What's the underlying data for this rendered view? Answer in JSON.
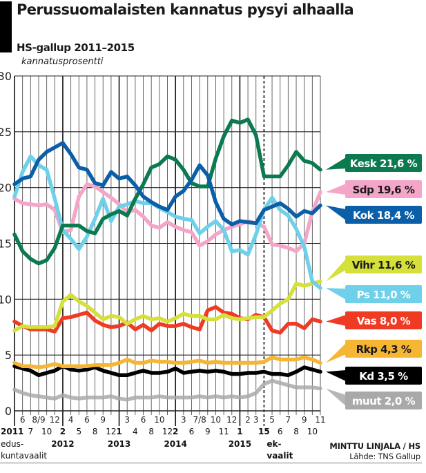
{
  "header": {
    "title": "Perussuomalaisten kannatus pysyi alhaalla",
    "subtitle": "HS-gallup 2011–2015",
    "unit_label": "kannatusprosentti"
  },
  "credits": {
    "author": "MINTTU LINJALA / HS",
    "source": "Lähde: TNS Gallup"
  },
  "chart_data": {
    "type": "line",
    "title": "Perussuomalaisten kannatus pysyi alhaalla",
    "subtitle": "HS-gallup 2011–2015",
    "ylabel": "kannatusprosentti",
    "xlabel": "",
    "ylim": [
      0,
      30
    ],
    "yticks": [
      "0",
      "5",
      "10",
      "15",
      "20",
      "25",
      "30"
    ],
    "grid": true,
    "legend_placement": "right",
    "x_count": 39,
    "x_ticks_upper": [
      {
        "i": 1,
        "label": "6"
      },
      {
        "i": 3,
        "label": "8/9"
      },
      {
        "i": 5,
        "label": "12"
      },
      {
        "i": 7,
        "label": "4"
      },
      {
        "i": 9,
        "label": "6"
      },
      {
        "i": 11,
        "label": "9"
      },
      {
        "i": 14,
        "label": "3"
      },
      {
        "i": 16,
        "label": "6"
      },
      {
        "i": 18,
        "label": "10"
      },
      {
        "i": 21,
        "label": "3"
      },
      {
        "i": 23,
        "label": "7/8"
      },
      {
        "i": 25,
        "label": "10"
      },
      {
        "i": 27,
        "label": "12"
      },
      {
        "i": 29,
        "label": "2"
      },
      {
        "i": 30,
        "label": "3"
      },
      {
        "i": 32,
        "label": "5"
      },
      {
        "i": 34,
        "label": "7"
      },
      {
        "i": 36,
        "label": "9"
      },
      {
        "i": 38,
        "label": "11"
      }
    ],
    "x_ticks_lower": [
      {
        "i": 0,
        "label": "2011",
        "bold": true
      },
      {
        "i": 2,
        "label": "7"
      },
      {
        "i": 4,
        "label": "10"
      },
      {
        "i": 6,
        "label": "2",
        "bold": true
      },
      {
        "i": 8,
        "label": "5"
      },
      {
        "i": 10,
        "label": "8"
      },
      {
        "i": 12,
        "label": "12"
      },
      {
        "i": 13,
        "label": "1",
        "bold": true
      },
      {
        "i": 15,
        "label": "4"
      },
      {
        "i": 17,
        "label": "8"
      },
      {
        "i": 19,
        "label": "12"
      },
      {
        "i": 20,
        "label": "2",
        "bold": true
      },
      {
        "i": 22,
        "label": "6"
      },
      {
        "i": 24,
        "label": "9"
      },
      {
        "i": 26,
        "label": "11"
      },
      {
        "i": 28,
        "label": "1",
        "bold": true
      },
      {
        "i": 31,
        "label": "15",
        "bold": true
      },
      {
        "i": 33,
        "label": "6"
      },
      {
        "i": 35,
        "label": "8"
      },
      {
        "i": 37,
        "label": "10"
      }
    ],
    "year_labels": [
      {
        "i": 6,
        "label": "2012"
      },
      {
        "i": 13,
        "label": "2013"
      },
      {
        "i": 20,
        "label": "2014"
      },
      {
        "i": 28,
        "label": "2015"
      }
    ],
    "annotations": [
      {
        "i": 0,
        "lines": [
          "edus-",
          "kuntavaalit"
        ]
      },
      {
        "i": 31,
        "lines": [
          "ek-",
          "vaalit"
        ]
      }
    ],
    "year_lines": [
      6,
      13,
      20,
      28
    ],
    "election_line": 31,
    "series": [
      {
        "name": "Kesk",
        "label": "Kesk 21,6 %",
        "color": "#0b7a4f",
        "text_color": "#ffffff",
        "values": [
          15.8,
          14.3,
          13.6,
          13.2,
          13.5,
          14.6,
          16.6,
          16.6,
          16.6,
          16.1,
          15.9,
          17.2,
          17.6,
          17.9,
          17.5,
          19.0,
          20.3,
          21.8,
          22.1,
          22.8,
          22.5,
          21.6,
          20.4,
          20.1,
          20.1,
          22.6,
          24.6,
          26.0,
          25.8,
          26.1,
          24.7,
          21.0,
          21.0,
          21.0,
          22.0,
          23.2,
          22.4,
          22.2,
          21.6
        ]
      },
      {
        "name": "Sdp",
        "label": "Sdp 19,6 %",
        "color": "#f4a6c8",
        "text_color": "#1a1a1a",
        "values": [
          19.0,
          18.6,
          18.5,
          18.4,
          18.5,
          18.0,
          16.0,
          16.2,
          19.2,
          20.3,
          20.1,
          19.6,
          19.1,
          18.5,
          17.8,
          18.0,
          17.4,
          16.6,
          16.4,
          16.9,
          16.5,
          16.2,
          16.0,
          14.8,
          15.2,
          15.8,
          16.2,
          16.5,
          16.7,
          17.0,
          16.8,
          16.5,
          14.9,
          14.8,
          14.6,
          14.3,
          15.0,
          17.8,
          19.6
        ]
      },
      {
        "name": "Kok",
        "label": "Kok 18,4 %",
        "color": "#0b5ea8",
        "text_color": "#ffffff",
        "values": [
          20.3,
          20.8,
          21.0,
          22.5,
          23.2,
          23.6,
          24.0,
          23.0,
          21.8,
          21.6,
          20.4,
          20.2,
          21.4,
          20.8,
          21.0,
          20.2,
          19.2,
          18.7,
          18.3,
          18.0,
          19.2,
          19.7,
          20.7,
          22.0,
          21.1,
          18.7,
          17.2,
          16.7,
          17.0,
          16.9,
          16.8,
          18.0,
          18.3,
          18.6,
          18.1,
          17.4,
          17.9,
          17.7,
          18.4
        ]
      },
      {
        "name": "Vihr",
        "label": "Vihr 11,6 %",
        "color": "#d6e03a",
        "text_color": "#1a1a1a",
        "values": [
          7.2,
          7.6,
          7.5,
          7.5,
          7.5,
          7.6,
          9.8,
          10.4,
          9.8,
          9.4,
          8.8,
          8.2,
          8.5,
          8.4,
          7.8,
          8.2,
          8.5,
          8.2,
          8.3,
          8.0,
          8.3,
          8.7,
          8.5,
          8.5,
          8.2,
          8.2,
          8.6,
          8.3,
          8.2,
          8.3,
          8.4,
          8.4,
          9.0,
          9.6,
          10.0,
          11.4,
          11.2,
          11.4,
          11.6
        ]
      },
      {
        "name": "Ps",
        "label": "Ps 11,0 %",
        "color": "#6fd0ea",
        "text_color": "#ffffff",
        "values": [
          19.2,
          21.4,
          22.8,
          22.0,
          21.6,
          19.0,
          16.2,
          15.4,
          14.5,
          15.6,
          17.2,
          19.0,
          17.0,
          18.3,
          18.5,
          18.8,
          18.6,
          18.6,
          18.2,
          17.8,
          17.4,
          17.2,
          17.1,
          15.9,
          16.5,
          17.0,
          16.2,
          14.3,
          14.4,
          14.0,
          15.8,
          18.0,
          19.1,
          18.0,
          17.5,
          16.3,
          14.7,
          11.6,
          11.0
        ]
      },
      {
        "name": "Vas",
        "label": "Vas 8,0 %",
        "color": "#ef3b24",
        "text_color": "#ffffff",
        "values": [
          8.0,
          7.6,
          7.3,
          7.3,
          7.3,
          7.1,
          8.3,
          8.4,
          8.6,
          8.8,
          8.1,
          7.7,
          7.5,
          7.6,
          7.9,
          7.3,
          7.7,
          7.2,
          7.8,
          7.6,
          7.6,
          7.8,
          7.5,
          7.3,
          9.0,
          9.3,
          8.8,
          8.7,
          8.3,
          8.2,
          8.6,
          8.4,
          7.2,
          7.0,
          7.8,
          7.8,
          7.4,
          8.2,
          8.0
        ]
      },
      {
        "name": "Rkp",
        "label": "Rkp 4,3 %",
        "color": "#f6b634",
        "text_color": "#1a1a1a",
        "values": [
          4.3,
          4.0,
          4.0,
          3.9,
          4.0,
          4.2,
          4.0,
          4.0,
          4.0,
          4.0,
          4.1,
          4.1,
          4.1,
          4.3,
          4.6,
          4.3,
          4.3,
          4.5,
          4.4,
          4.4,
          4.3,
          4.3,
          4.4,
          4.5,
          4.3,
          4.4,
          4.3,
          4.3,
          4.3,
          4.3,
          4.3,
          4.4,
          4.8,
          4.6,
          4.6,
          4.6,
          4.8,
          4.6,
          4.3
        ]
      },
      {
        "name": "Kd",
        "label": "Kd 3,5 %",
        "color": "#000000",
        "text_color": "#ffffff",
        "values": [
          4.0,
          3.8,
          3.6,
          3.2,
          3.4,
          3.6,
          4.0,
          3.7,
          3.6,
          3.7,
          3.9,
          3.6,
          3.4,
          3.2,
          3.2,
          3.4,
          3.6,
          3.4,
          3.4,
          3.5,
          3.8,
          3.4,
          3.5,
          3.6,
          3.5,
          3.6,
          3.5,
          3.3,
          3.3,
          3.4,
          3.4,
          3.5,
          3.3,
          3.3,
          3.2,
          3.5,
          3.9,
          3.7,
          3.5
        ]
      },
      {
        "name": "muut",
        "label": "muut 2,0 %",
        "color": "#a9a9a9",
        "text_color": "#ffffff",
        "values": [
          1.9,
          1.6,
          1.4,
          1.3,
          1.2,
          1.1,
          1.4,
          1.2,
          1.1,
          1.2,
          1.2,
          1.2,
          1.3,
          1.1,
          1.0,
          1.2,
          1.2,
          1.2,
          1.3,
          1.2,
          1.2,
          1.2,
          1.2,
          1.3,
          1.2,
          1.3,
          1.2,
          1.3,
          1.2,
          1.3,
          1.6,
          2.4,
          2.7,
          2.5,
          2.3,
          2.1,
          2.1,
          2.1,
          2.0
        ]
      }
    ]
  }
}
